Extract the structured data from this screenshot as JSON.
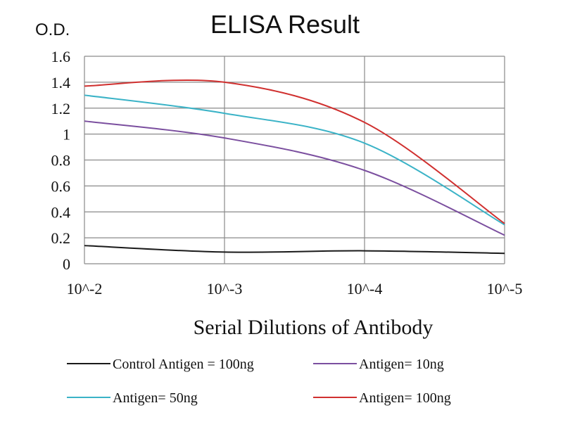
{
  "chart_data": {
    "type": "line",
    "title": "ELISA Result",
    "ylabel": "O.D.",
    "xlabel": "Serial Dilutions  of Antibody",
    "categories": [
      "10^-2",
      "10^-3",
      "10^-4",
      "10^-5"
    ],
    "ylim": [
      0,
      1.6
    ],
    "yticks": [
      "0",
      "0.2",
      "0.4",
      "0.6",
      "0.8",
      "1",
      "1.2",
      "1.4",
      "1.6"
    ],
    "grid": true,
    "legend_position": "bottom",
    "series": [
      {
        "name": "Control Antigen = 100ng",
        "color": "#1a1a1a",
        "values": [
          0.14,
          0.09,
          0.1,
          0.08
        ]
      },
      {
        "name": "Antigen= 10ng",
        "color": "#7b4f9f",
        "values": [
          1.1,
          0.97,
          0.72,
          0.22
        ]
      },
      {
        "name": "Antigen= 50ng",
        "color": "#3bb3c7",
        "values": [
          1.3,
          1.16,
          0.93,
          0.3
        ]
      },
      {
        "name": "Antigen= 100ng",
        "color": "#d0302f",
        "values": [
          1.37,
          1.4,
          1.09,
          0.31
        ]
      }
    ]
  }
}
